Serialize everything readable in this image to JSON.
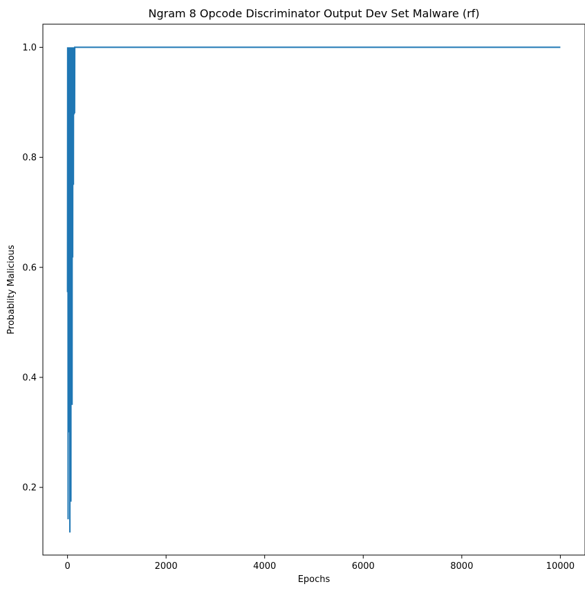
{
  "chart_data": {
    "type": "line",
    "title": "Ngram 8 Opcode Discriminator Output Dev Set Malware (rf)",
    "xlabel": "Epochs",
    "ylabel": "Probablity Malicious",
    "xlim": [
      -500,
      10500
    ],
    "ylim": [
      0.077,
      1.042
    ],
    "x_ticks": [
      0,
      2000,
      4000,
      6000,
      8000,
      10000
    ],
    "y_ticks": [
      0.2,
      0.4,
      0.6,
      0.8,
      1.0
    ],
    "y_tick_labels": [
      "0.2",
      "0.4",
      "0.6",
      "0.8",
      "1.0"
    ],
    "grid": false,
    "line_color": "#1f77b4",
    "series": [
      {
        "x": [
          0,
          3,
          6,
          9,
          12,
          15,
          18,
          21,
          24,
          27,
          30,
          33,
          36,
          39,
          42,
          45,
          48,
          51,
          54,
          57,
          60,
          63,
          66,
          69,
          72,
          75,
          78,
          81,
          84,
          87,
          90,
          93,
          96,
          99,
          102,
          105,
          108,
          111,
          114,
          117,
          120,
          123,
          126,
          129,
          132,
          135,
          138,
          141,
          144,
          147,
          150,
          200,
          10000
        ],
        "y": [
          0.555,
          1.0,
          0.79,
          1.0,
          0.142,
          1.0,
          0.98,
          0.3,
          1.0,
          0.86,
          0.9,
          1.0,
          0.7,
          1.0,
          0.45,
          1.0,
          0.118,
          1.0,
          0.95,
          0.25,
          1.0,
          0.6,
          1.0,
          0.174,
          1.0,
          0.9,
          0.55,
          1.0,
          0.43,
          1.0,
          0.98,
          0.35,
          1.0,
          0.85,
          1.0,
          0.618,
          1.0,
          0.92,
          0.9,
          1.0,
          0.75,
          1.0,
          0.98,
          1.0,
          0.878,
          1.0,
          0.95,
          1.0,
          0.88,
          1.0,
          1.0,
          1.0,
          1.0
        ]
      }
    ]
  }
}
